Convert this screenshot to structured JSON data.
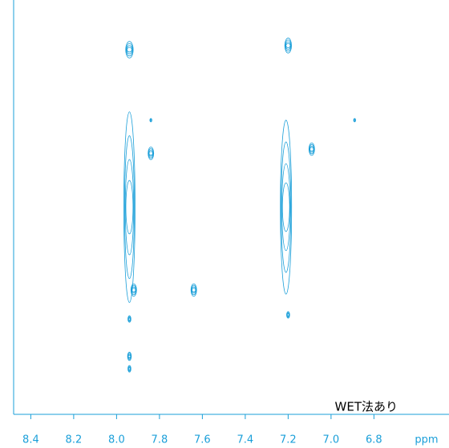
{
  "chart_data": {
    "type": "contour",
    "xlabel": "ppm",
    "annotation": "WET法あり",
    "color": "#1a9fd9",
    "xlim": [
      8.48,
      6.45
    ],
    "ylim": [
      0,
      1
    ],
    "xticks": [
      {
        "value": 8.4,
        "label": "8.4"
      },
      {
        "value": 8.2,
        "label": "8.2"
      },
      {
        "value": 8.0,
        "label": "8.0"
      },
      {
        "value": 7.8,
        "label": "7.8"
      },
      {
        "value": 7.6,
        "label": "7.6"
      },
      {
        "value": 7.4,
        "label": "7.4"
      },
      {
        "value": 7.2,
        "label": "7.2"
      },
      {
        "value": 7.0,
        "label": "7.0"
      },
      {
        "value": 6.8,
        "label": "6.8"
      }
    ],
    "x": [
      7.94,
      7.94,
      7.84,
      7.92,
      7.64,
      7.94,
      7.94,
      7.94,
      7.21,
      7.2,
      7.09,
      7.2,
      6.89,
      7.84
    ],
    "y": [
      0.5,
      0.88,
      0.63,
      0.3,
      0.3,
      0.23,
      0.14,
      0.11,
      0.5,
      0.89,
      0.64,
      0.24,
      0.71,
      0.71
    ],
    "spread": [
      0.23,
      0.02,
      0.015,
      0.015,
      0.015,
      0.008,
      0.01,
      0.008,
      0.21,
      0.018,
      0.015,
      0.008,
      0.004,
      0.004
    ]
  }
}
